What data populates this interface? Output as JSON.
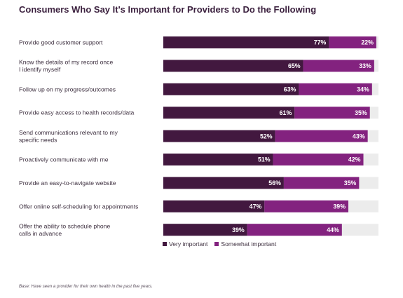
{
  "title": "Consumers Who Say It's Important for Providers to Do the Following",
  "footnote": "Base: Have seen a provider for their own health in the past five years.",
  "colors": {
    "very": "#42183f",
    "somewhat": "#83227f",
    "track": "#ececec"
  },
  "chart_data": {
    "type": "bar",
    "orientation": "horizontal",
    "stacked": true,
    "xlim": [
      0,
      100
    ],
    "categories": [
      [
        "Provide good customer support"
      ],
      [
        "Know the details of my record once",
        "I identify myself"
      ],
      [
        "Follow up on my progress/outcomes"
      ],
      [
        "Provide easy access to health records/data"
      ],
      [
        "Send communications relevant to my",
        "specific needs"
      ],
      [
        "Proactively communicate with me"
      ],
      [
        "Provide an easy-to-navigate website"
      ],
      [
        "Offer online self-scheduling for appointments"
      ],
      [
        "Offer the ability to schedule phone",
        "calls in advance"
      ]
    ],
    "series": [
      {
        "name": "Very important",
        "values": [
          77,
          65,
          63,
          61,
          52,
          51,
          56,
          47,
          39
        ]
      },
      {
        "name": "Somewhat important",
        "values": [
          22,
          33,
          34,
          35,
          43,
          42,
          35,
          39,
          44
        ]
      }
    ],
    "legend": "bottom"
  }
}
